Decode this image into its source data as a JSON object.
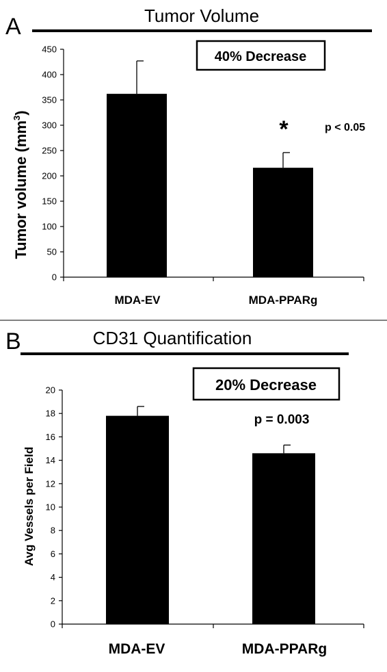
{
  "chart_data": [
    {
      "panel": "A",
      "type": "bar",
      "title": "Tumor Volume",
      "ylabel": "Tumor volume (mm3)",
      "ylabel_main": "Tumor volume (mm",
      "ylabel_sup": "3",
      "ylabel_close": ")",
      "categories": [
        "MDA-EV",
        "MDA-PPARg"
      ],
      "values": [
        362,
        216
      ],
      "errors": [
        65,
        30
      ],
      "ylim": [
        0,
        450
      ],
      "yticks": [
        "0",
        "50",
        "100",
        "150",
        "200",
        "250",
        "300",
        "350",
        "400",
        "450"
      ],
      "boxed_label": "40% Decrease",
      "annotations": [
        "*",
        "p < 0.05"
      ],
      "grid": false
    },
    {
      "panel": "B",
      "type": "bar",
      "title": "CD31 Quantification",
      "ylabel": "Avg Vessels per Field",
      "categories": [
        "MDA-EV",
        "MDA-PPARg"
      ],
      "values": [
        17.8,
        14.6
      ],
      "errors": [
        0.8,
        0.7
      ],
      "ylim": [
        0,
        20
      ],
      "yticks": [
        "0",
        "2",
        "4",
        "6",
        "8",
        "10",
        "12",
        "14",
        "16",
        "18",
        "20"
      ],
      "boxed_label": "20% Decrease",
      "annotations": [
        "p = 0.003"
      ],
      "grid": false
    }
  ]
}
